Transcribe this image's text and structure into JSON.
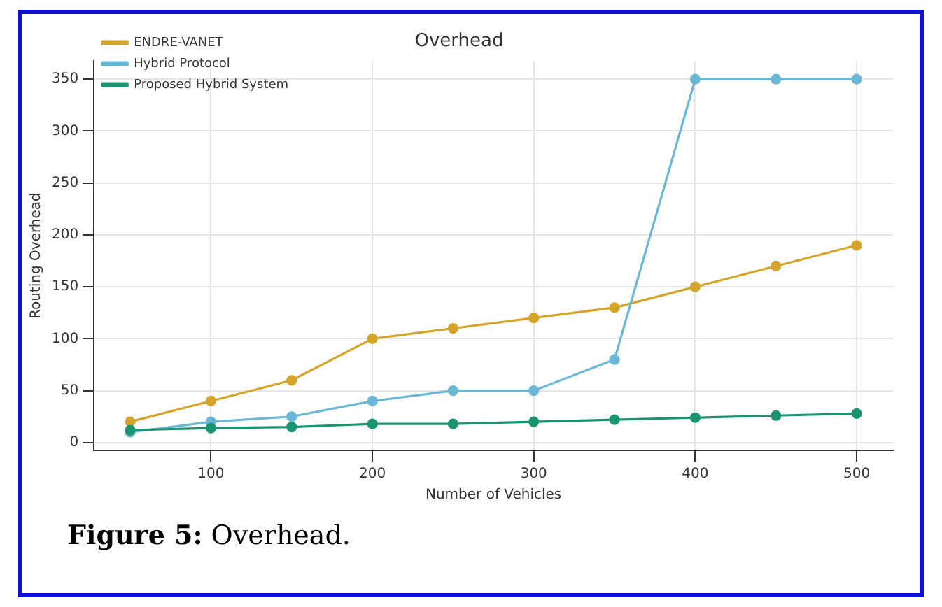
{
  "chart_data": {
    "type": "line",
    "title": "Overhead",
    "xlabel": "Number of Vehicles",
    "ylabel": "Routing Overhead",
    "x": [
      50,
      100,
      150,
      200,
      250,
      300,
      350,
      400,
      450,
      500
    ],
    "series": [
      {
        "name": "ENDRE-VANET",
        "color": "#d4a52a",
        "values": [
          20,
          40,
          60,
          100,
          110,
          120,
          130,
          150,
          170,
          190
        ]
      },
      {
        "name": "Hybrid Protocol",
        "color": "#6bb7d6",
        "values": [
          10,
          20,
          25,
          40,
          50,
          50,
          80,
          350,
          350,
          350
        ]
      },
      {
        "name": "Proposed Hybrid System",
        "color": "#1a9470",
        "values": [
          12,
          14,
          15,
          18,
          18,
          20,
          22,
          24,
          26,
          28
        ]
      }
    ],
    "xlim": [
      27.5,
      522.5
    ],
    "xticks": [
      100,
      200,
      300,
      400,
      500
    ],
    "ylim": [
      -7.5,
      367.5
    ],
    "yticks": [
      0,
      50,
      100,
      150,
      200,
      250,
      300,
      350
    ],
    "grid": true,
    "legend": "top left",
    "marker": "circle",
    "line_style": "solid",
    "annotations": [
      "Figure 5: Overhead."
    ]
  }
}
